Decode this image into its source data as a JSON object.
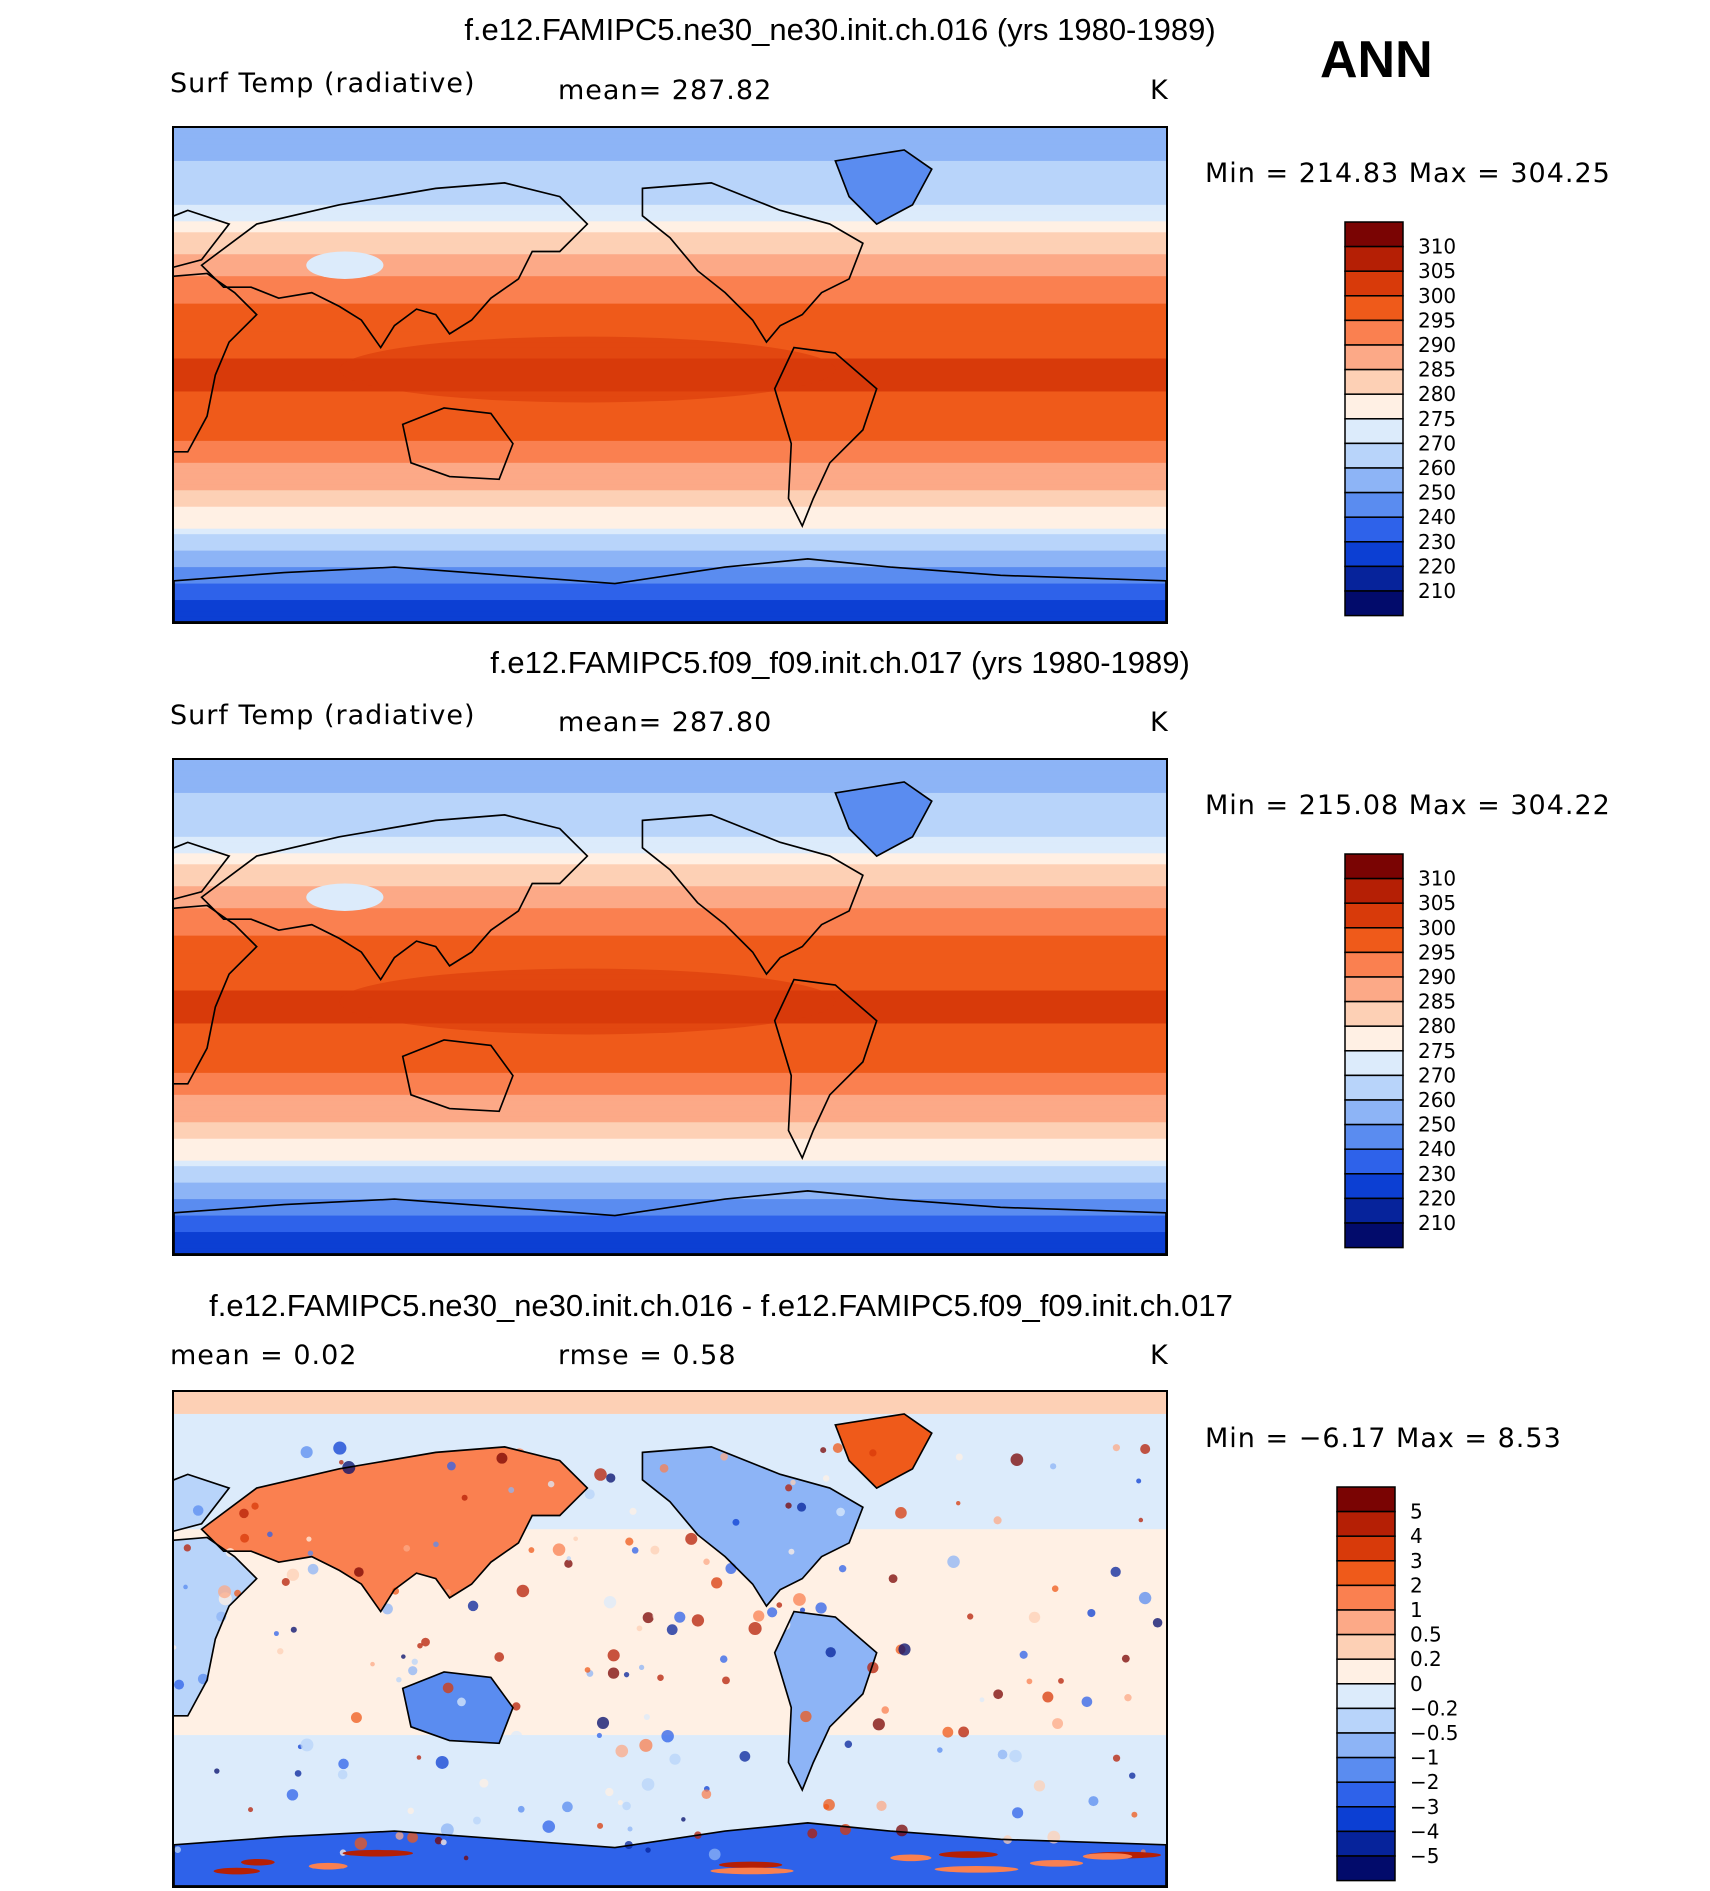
{
  "season": "ANN",
  "panels": [
    {
      "title": "f.e12.FAMIPC5.ne30_ne30.init.ch.016 (yrs 1980-1989)",
      "left_label": "Surf Temp (radiative)",
      "center_label": "mean= 287.82",
      "units": "K",
      "minmax": "Min  =  214.83  Max  =  304.25",
      "map_name": "map-model1-surf-temp",
      "style": "abs"
    },
    {
      "title": "f.e12.FAMIPC5.f09_f09.init.ch.017 (yrs 1980-1989)",
      "left_label": "Surf Temp (radiative)",
      "center_label": "mean= 287.80",
      "units": "K",
      "minmax": "Min  =  215.08  Max  =  304.22",
      "map_name": "map-model2-surf-temp",
      "style": "abs"
    },
    {
      "title": "f.e12.FAMIPC5.ne30_ne30.init.ch.016 - f.e12.FAMIPC5.f09_f09.init.ch.017",
      "left_label": "mean =     0.02",
      "center_label": "rmse =     0.58",
      "units": "K",
      "minmax": "Min  =    −6.17  Max  =     8.53",
      "map_name": "map-difference",
      "style": "diff"
    }
  ],
  "chart_data": [
    {
      "type": "heatmap",
      "title": "f.e12.FAMIPC5.ne30_ne30.init.ch.016 (yrs 1980-1989)",
      "variable": "Surf Temp (radiative)",
      "units": "K",
      "mean": 287.82,
      "min": 214.83,
      "max": 304.25,
      "colorbar_levels": [
        "310",
        "305",
        "300",
        "295",
        "290",
        "285",
        "280",
        "275",
        "270",
        "260",
        "250",
        "240",
        "230",
        "220",
        "210"
      ],
      "colorbar_colors": [
        "#7a0403",
        "#b51f05",
        "#d83a0a",
        "#ef5a1a",
        "#fa8050",
        "#fca987",
        "#fdd0b5",
        "#fff0e4",
        "#dcebfb",
        "#b8d4fa",
        "#8db4f6",
        "#5a8cf0",
        "#2e62ea",
        "#0c3fd3",
        "#06239b",
        "#020b6b"
      ],
      "latitude_profile": [
        {
          "lat": 80,
          "value": 258
        },
        {
          "lat": 65,
          "value": 268
        },
        {
          "lat": 50,
          "value": 281
        },
        {
          "lat": 35,
          "value": 291
        },
        {
          "lat": 20,
          "value": 298
        },
        {
          "lat": 0,
          "value": 301
        },
        {
          "lat": -20,
          "value": 297
        },
        {
          "lat": -40,
          "value": 286
        },
        {
          "lat": -55,
          "value": 275
        },
        {
          "lat": -70,
          "value": 250
        },
        {
          "lat": -85,
          "value": 225
        }
      ]
    },
    {
      "type": "heatmap",
      "title": "f.e12.FAMIPC5.f09_f09.init.ch.017 (yrs 1980-1989)",
      "variable": "Surf Temp (radiative)",
      "units": "K",
      "mean": 287.8,
      "min": 215.08,
      "max": 304.22,
      "colorbar_levels": [
        "310",
        "305",
        "300",
        "295",
        "290",
        "285",
        "280",
        "275",
        "270",
        "260",
        "250",
        "240",
        "230",
        "220",
        "210"
      ],
      "colorbar_colors": [
        "#7a0403",
        "#b51f05",
        "#d83a0a",
        "#ef5a1a",
        "#fa8050",
        "#fca987",
        "#fdd0b5",
        "#fff0e4",
        "#dcebfb",
        "#b8d4fa",
        "#8db4f6",
        "#5a8cf0",
        "#2e62ea",
        "#0c3fd3",
        "#06239b",
        "#020b6b"
      ],
      "latitude_profile": [
        {
          "lat": 80,
          "value": 258
        },
        {
          "lat": 65,
          "value": 268
        },
        {
          "lat": 50,
          "value": 281
        },
        {
          "lat": 35,
          "value": 291
        },
        {
          "lat": 20,
          "value": 298
        },
        {
          "lat": 0,
          "value": 301
        },
        {
          "lat": -20,
          "value": 297
        },
        {
          "lat": -40,
          "value": 286
        },
        {
          "lat": -55,
          "value": 275
        },
        {
          "lat": -70,
          "value": 250
        },
        {
          "lat": -85,
          "value": 225
        }
      ]
    },
    {
      "type": "heatmap",
      "title": "f.e12.FAMIPC5.ne30_ne30.init.ch.016 - f.e12.FAMIPC5.f09_f09.init.ch.017",
      "units": "K",
      "mean": 0.02,
      "rmse": 0.58,
      "min": -6.17,
      "max": 8.53,
      "colorbar_levels": [
        "5",
        "4",
        "3",
        "2",
        "1",
        "0.5",
        "0.2",
        "0",
        "−0.2",
        "−0.5",
        "−1",
        "−2",
        "−3",
        "−4",
        "−5"
      ],
      "colorbar_colors": [
        "#7a0403",
        "#b51f05",
        "#d83a0a",
        "#ef5a1a",
        "#fa8050",
        "#fca987",
        "#fdd0b5",
        "#fff0e4",
        "#dcebfb",
        "#b8d4fa",
        "#8db4f6",
        "#5a8cf0",
        "#2e62ea",
        "#0c3fd3",
        "#06239b",
        "#020b6b"
      ]
    }
  ]
}
